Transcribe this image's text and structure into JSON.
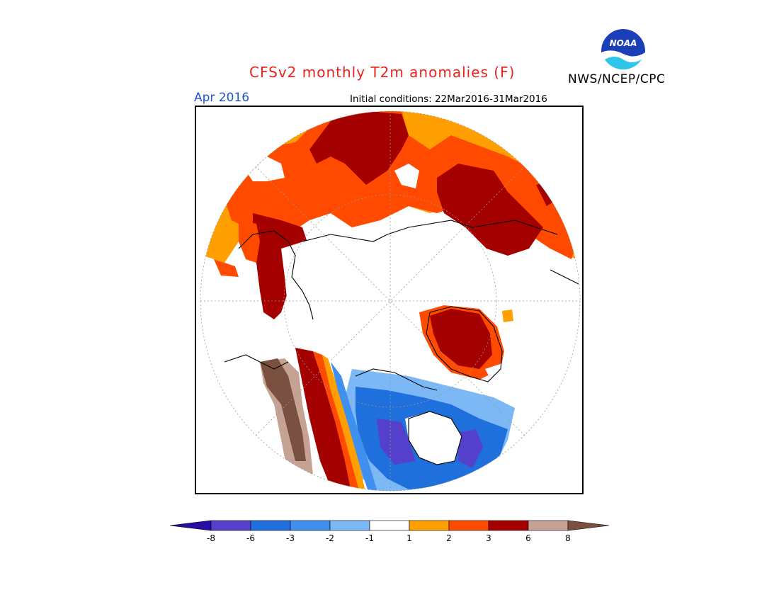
{
  "title": "CFSv2 monthly T2m anomalies (F)",
  "valid_month": "Apr 2016",
  "initial_conditions": "Initial conditions: 22Mar2016-31Mar2016",
  "agency": "NWS/NCEP/CPC",
  "logo": {
    "icon": "noaa-logo",
    "text": "NOAA"
  },
  "colorbar": {
    "ticks": [
      "-8",
      "-6",
      "-3",
      "-2",
      "-1",
      "1",
      "2",
      "3",
      "6",
      "8"
    ],
    "colors": [
      "#2a0ca6",
      "#5540cc",
      "#1f6fdc",
      "#3f90ee",
      "#7bb8f5",
      "#ffffff",
      "#ffa000",
      "#ff4a00",
      "#a50000",
      "#c6a294",
      "#7a5040"
    ]
  },
  "map": {
    "projection": "north polar stereographic",
    "colors": {
      "orange": "#ffa000",
      "red": "#ff4a00",
      "darkred": "#a50000",
      "brown_light": "#c6a294",
      "brown_dark": "#7a5040",
      "blue_light": "#7bb8f5",
      "blue_mid": "#3f90ee",
      "blue": "#1f6fdc",
      "purple": "#5540cc"
    }
  }
}
